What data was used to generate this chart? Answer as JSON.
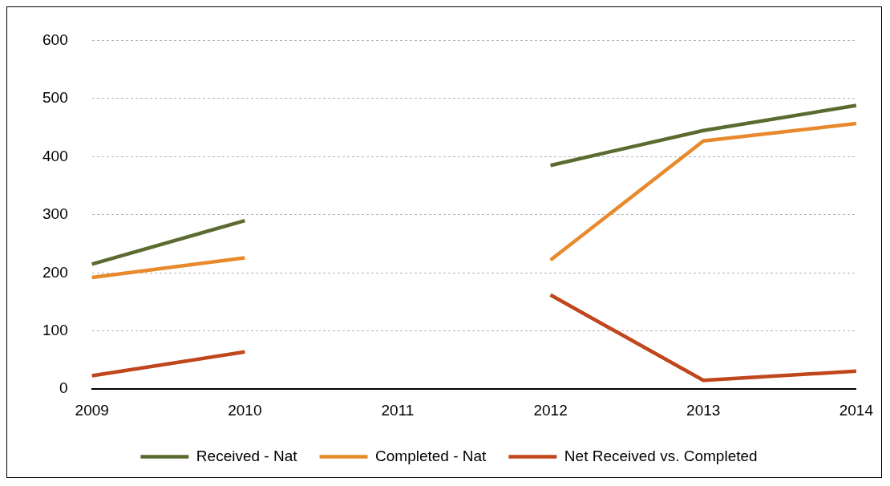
{
  "chart_data": {
    "type": "line",
    "categories": [
      "2009",
      "2010",
      "2011",
      "2012",
      "2013",
      "2014"
    ],
    "series": [
      {
        "name": "Received - Nat",
        "color": "#5b6b2f",
        "values": [
          215,
          290,
          null,
          385,
          445,
          488
        ]
      },
      {
        "name": "Completed - Nat",
        "color": "#e8892c",
        "values": [
          192,
          226,
          null,
          222,
          427,
          457
        ]
      },
      {
        "name": "Net Received vs. Completed",
        "color": "#c0461c",
        "values": [
          23,
          64,
          null,
          162,
          15,
          31
        ]
      }
    ],
    "ylim": [
      0,
      600
    ],
    "yticks": [
      0,
      100,
      200,
      300,
      400,
      500,
      600
    ],
    "grid": "y",
    "legend": "bottom",
    "marker": "none",
    "line_style": "solid"
  }
}
